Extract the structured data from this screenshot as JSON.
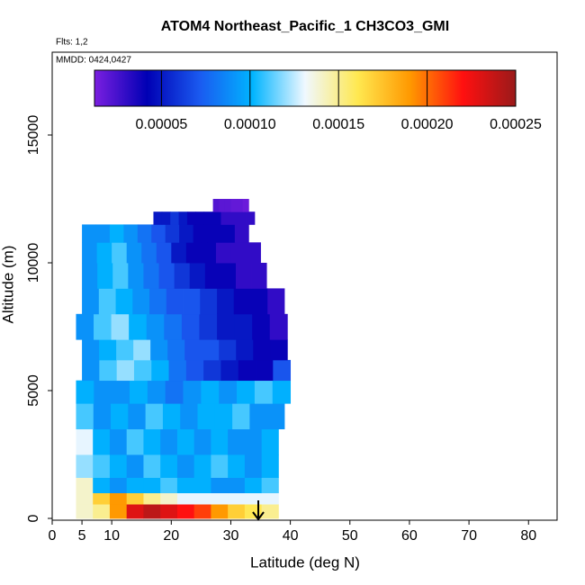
{
  "chart_data": {
    "type": "curtain",
    "title": "ATOM4 Northeast_Pacific_1 CH3CO3_GMI",
    "annotations": [
      "Flts: 1,2",
      "MMDD: 0424,0427"
    ],
    "x_label": "Latitude (deg N)",
    "y_label": "Altitude (m)",
    "xlim": [
      0,
      84.8
    ],
    "ylim": [
      -70,
      18240
    ],
    "xticks": [
      0,
      5,
      10,
      20,
      30,
      40,
      50,
      60,
      70,
      80
    ],
    "yticks": [
      0,
      5000,
      10000,
      15000
    ],
    "colorbar": {
      "lim": [
        1.22e-05,
        0.00025
      ],
      "colors": [
        "#7b1fe0",
        "#0000b4",
        "#1a5af0",
        "#00b4ff",
        "#f0f8ff",
        "#ffe850",
        "#ff9800",
        "#ff1010",
        "#9a1a1a"
      ],
      "ticks": [
        5e-05,
        {
          "value": 0.0001,
          "label": "0.00010"
        },
        0.00015,
        {
          "value": 0.0002,
          "label": "0.00020"
        },
        0.00025
      ]
    },
    "rows": [
      {
        "alt": [
          0,
          560
        ],
        "lat": [
          4,
          38
        ],
        "values": [
          0.00014,
          0.00015,
          0.00019,
          0.00023,
          0.00024,
          0.00023,
          0.00022,
          0.00021,
          0.00019,
          0.00017,
          0.00016,
          0.00015
        ]
      },
      {
        "alt": [
          560,
          1000
        ],
        "lat": [
          4,
          38
        ],
        "values": [
          0.00014,
          0.00017,
          0.00019,
          0.00017,
          0.00015,
          0.00014,
          0.00013,
          0.00013,
          0.00013,
          0.00013,
          0.00013,
          0.00013
        ]
      },
      {
        "alt": [
          1000,
          1600
        ],
        "lat": [
          4,
          38
        ],
        "values": [
          0.00014,
          0.0001,
          9e-05,
          0.0001,
          0.0001,
          0.00011,
          0.0001,
          0.0001,
          9e-05,
          9e-05,
          0.0001,
          0.00011
        ]
      },
      {
        "alt": [
          1600,
          2500
        ],
        "lat": [
          4,
          38
        ],
        "values": [
          0.00012,
          0.00011,
          0.0001,
          9e-05,
          0.00011,
          0.0001,
          9e-05,
          0.0001,
          0.00011,
          0.0001,
          9e-05,
          0.0001
        ]
      },
      {
        "alt": [
          2500,
          3500
        ],
        "lat": [
          4,
          38
        ],
        "values": [
          0.00013,
          0.0001,
          9e-05,
          0.00011,
          0.0001,
          9e-05,
          0.0001,
          9e-05,
          0.0001,
          9e-05,
          9e-05,
          0.0001
        ]
      },
      {
        "alt": [
          3500,
          4500
        ],
        "lat": [
          4,
          39
        ],
        "values": [
          0.00011,
          9e-05,
          0.0001,
          9e-05,
          0.00011,
          0.0001,
          9e-05,
          0.0001,
          0.0001,
          0.00011,
          9e-05,
          9e-05
        ]
      },
      {
        "alt": [
          4500,
          5400
        ],
        "lat": [
          4,
          40
        ],
        "values": [
          0.0001,
          9e-05,
          9e-05,
          0.0001,
          9e-05,
          8e-05,
          9e-05,
          0.0001,
          9e-05,
          0.0001,
          0.00011,
          0.0001
        ]
      },
      {
        "alt": [
          5400,
          6200
        ],
        "lat": [
          5,
          40
        ],
        "values": [
          9e-05,
          0.00011,
          0.00012,
          0.00011,
          0.0001,
          8e-05,
          7e-05,
          6e-05,
          5e-05,
          4e-05,
          4e-05,
          7e-05
        ]
      },
      {
        "alt": [
          6200,
          7000
        ],
        "lat": [
          5,
          39.5
        ],
        "values": [
          9e-05,
          0.0001,
          0.00011,
          0.00012,
          9e-05,
          8e-05,
          7e-05,
          7e-05,
          6e-05,
          5e-05,
          4e-05,
          4e-05
        ]
      },
      {
        "alt": [
          7000,
          8000
        ],
        "lat": [
          4,
          39.5
        ],
        "values": [
          9e-05,
          0.00011,
          0.00012,
          0.0001,
          9e-05,
          8e-05,
          7e-05,
          6e-05,
          5e-05,
          5e-05,
          4e-05,
          3e-05
        ]
      },
      {
        "alt": [
          8000,
          9000
        ],
        "lat": [
          5,
          39
        ],
        "values": [
          9e-05,
          0.00011,
          0.0001,
          9e-05,
          8e-05,
          7e-05,
          7e-05,
          6e-05,
          5e-05,
          4e-05,
          4e-05,
          3e-05
        ]
      },
      {
        "alt": [
          9000,
          10000
        ],
        "lat": [
          5,
          36
        ],
        "values": [
          9e-05,
          0.0001,
          0.00011,
          9e-05,
          8e-05,
          7e-05,
          6e-05,
          5e-05,
          4e-05,
          4e-05,
          3e-05,
          3e-05
        ]
      },
      {
        "alt": [
          10000,
          10800
        ],
        "lat": [
          5,
          35
        ],
        "values": [
          9e-05,
          0.0001,
          0.00011,
          9e-05,
          8e-05,
          7e-05,
          5e-05,
          4e-05,
          4e-05,
          3e-05,
          3e-05,
          3e-05
        ]
      },
      {
        "alt": [
          10800,
          11500
        ],
        "lat": [
          5,
          33
        ],
        "values": [
          9e-05,
          9e-05,
          0.0001,
          9e-05,
          8e-05,
          7e-05,
          6e-05,
          5e-05,
          4e-05,
          4e-05,
          4e-05,
          3e-05
        ]
      },
      {
        "alt": [
          11500,
          12000
        ],
        "lat": [
          17,
          34
        ],
        "values": [
          5e-05,
          5e-05,
          6e-05,
          5e-05,
          4e-05,
          4e-05,
          4e-05,
          4e-05,
          3e-05,
          3e-05,
          3e-05,
          3e-05
        ]
      },
      {
        "alt": [
          12000,
          12500
        ],
        "lat": [
          27,
          33
        ],
        "values": [
          2.2e-05,
          2e-05,
          2e-05,
          1.8e-05,
          1.8e-05,
          1.6e-05
        ]
      }
    ]
  }
}
